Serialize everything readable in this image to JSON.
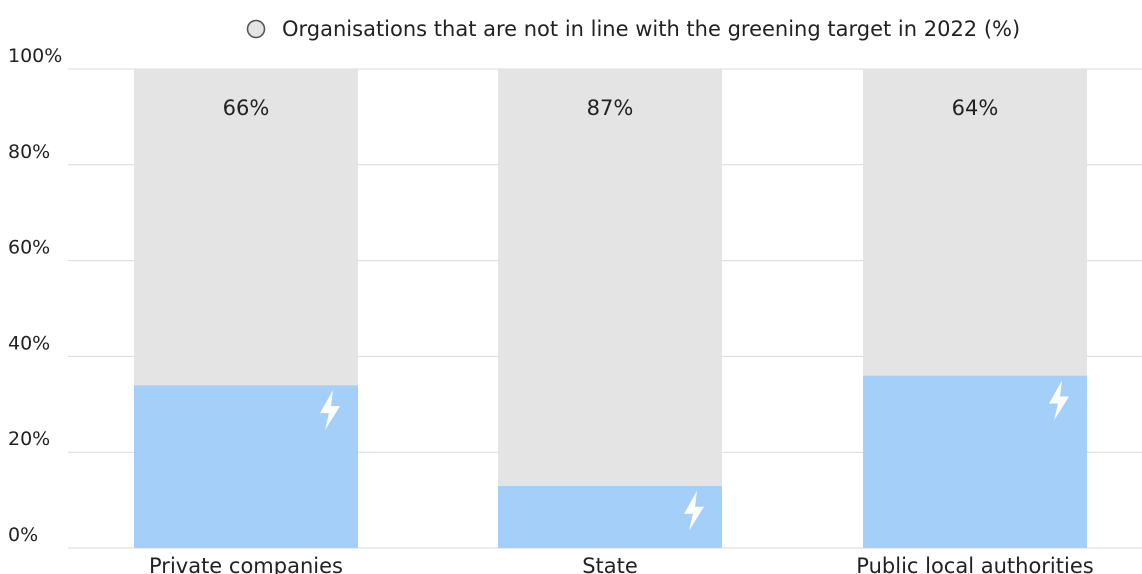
{
  "chart_data": {
    "type": "bar",
    "stacked": true,
    "categories": [
      "Private companies",
      "State",
      "Public local authorities"
    ],
    "series": [
      {
        "name": "",
        "values": [
          34,
          13,
          36
        ],
        "color": "#a3cff9",
        "icon": "lightning-bolt-icon"
      },
      {
        "name": "Organisations that are not in line with the greening target in 2022 (%)",
        "values": [
          66,
          87,
          64
        ],
        "color": "#e4e4e4",
        "data_labels": [
          "66%",
          "87%",
          "64%"
        ]
      }
    ],
    "y_ticks": [
      "0%",
      "20%",
      "40%",
      "60%",
      "80%",
      "100%"
    ],
    "ylim": [
      0,
      100
    ],
    "grid": true,
    "legend_position": "top"
  }
}
